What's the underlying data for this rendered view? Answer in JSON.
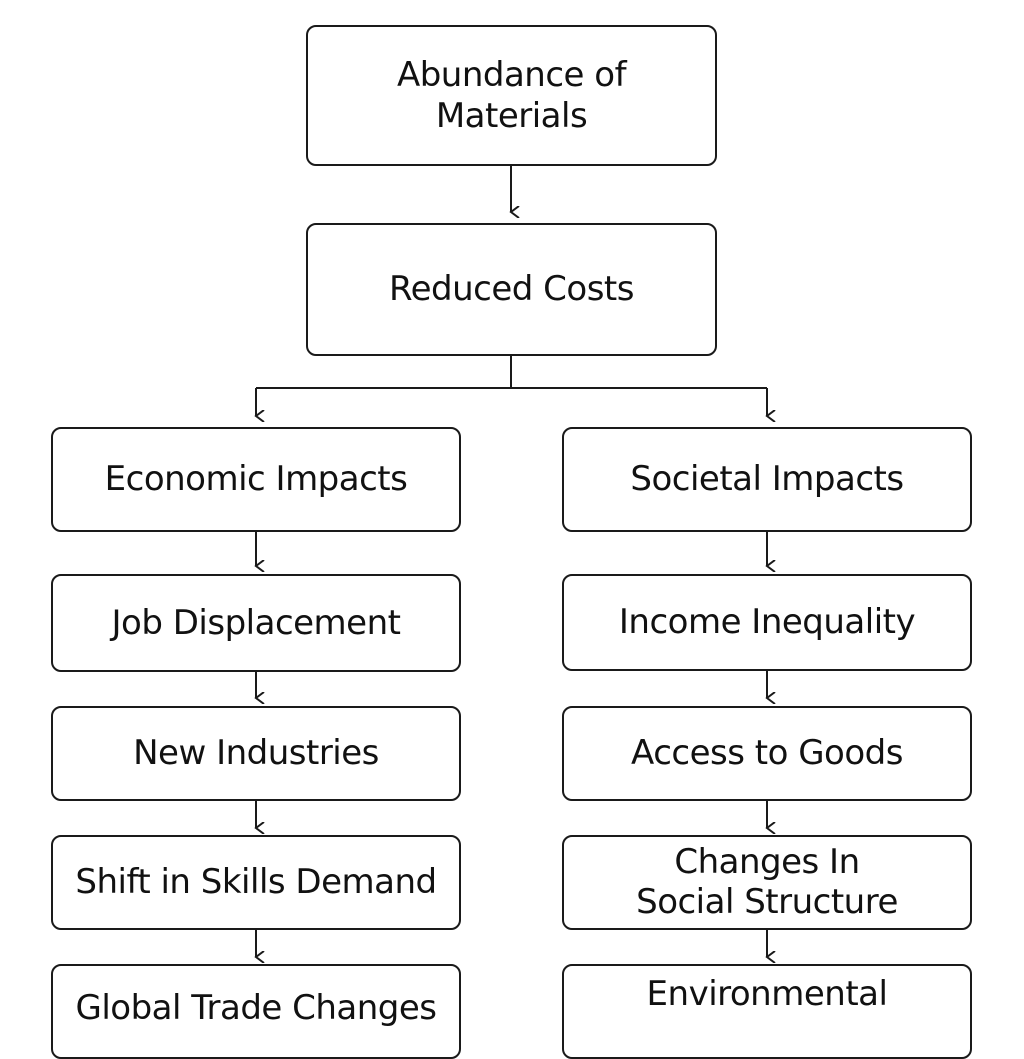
{
  "nodes": {
    "root": {
      "line1": "Abundance of",
      "line2": "Materials"
    },
    "costs": "Reduced Costs",
    "left": {
      "header": "Economic Impacts",
      "items": [
        "Job Displacement",
        "New Industries",
        "Shift in Skills Demand",
        "Global Trade Changes"
      ]
    },
    "right": {
      "header": "Societal Impacts",
      "items": [
        "Income Inequality",
        "Access to Goods"
      ],
      "social_line1": "Changes In",
      "social_line2": "Social Structure",
      "env_line1": "Environmental"
    }
  },
  "colors": {
    "stroke": "#1a1a1a",
    "fill": "#ffffff"
  }
}
